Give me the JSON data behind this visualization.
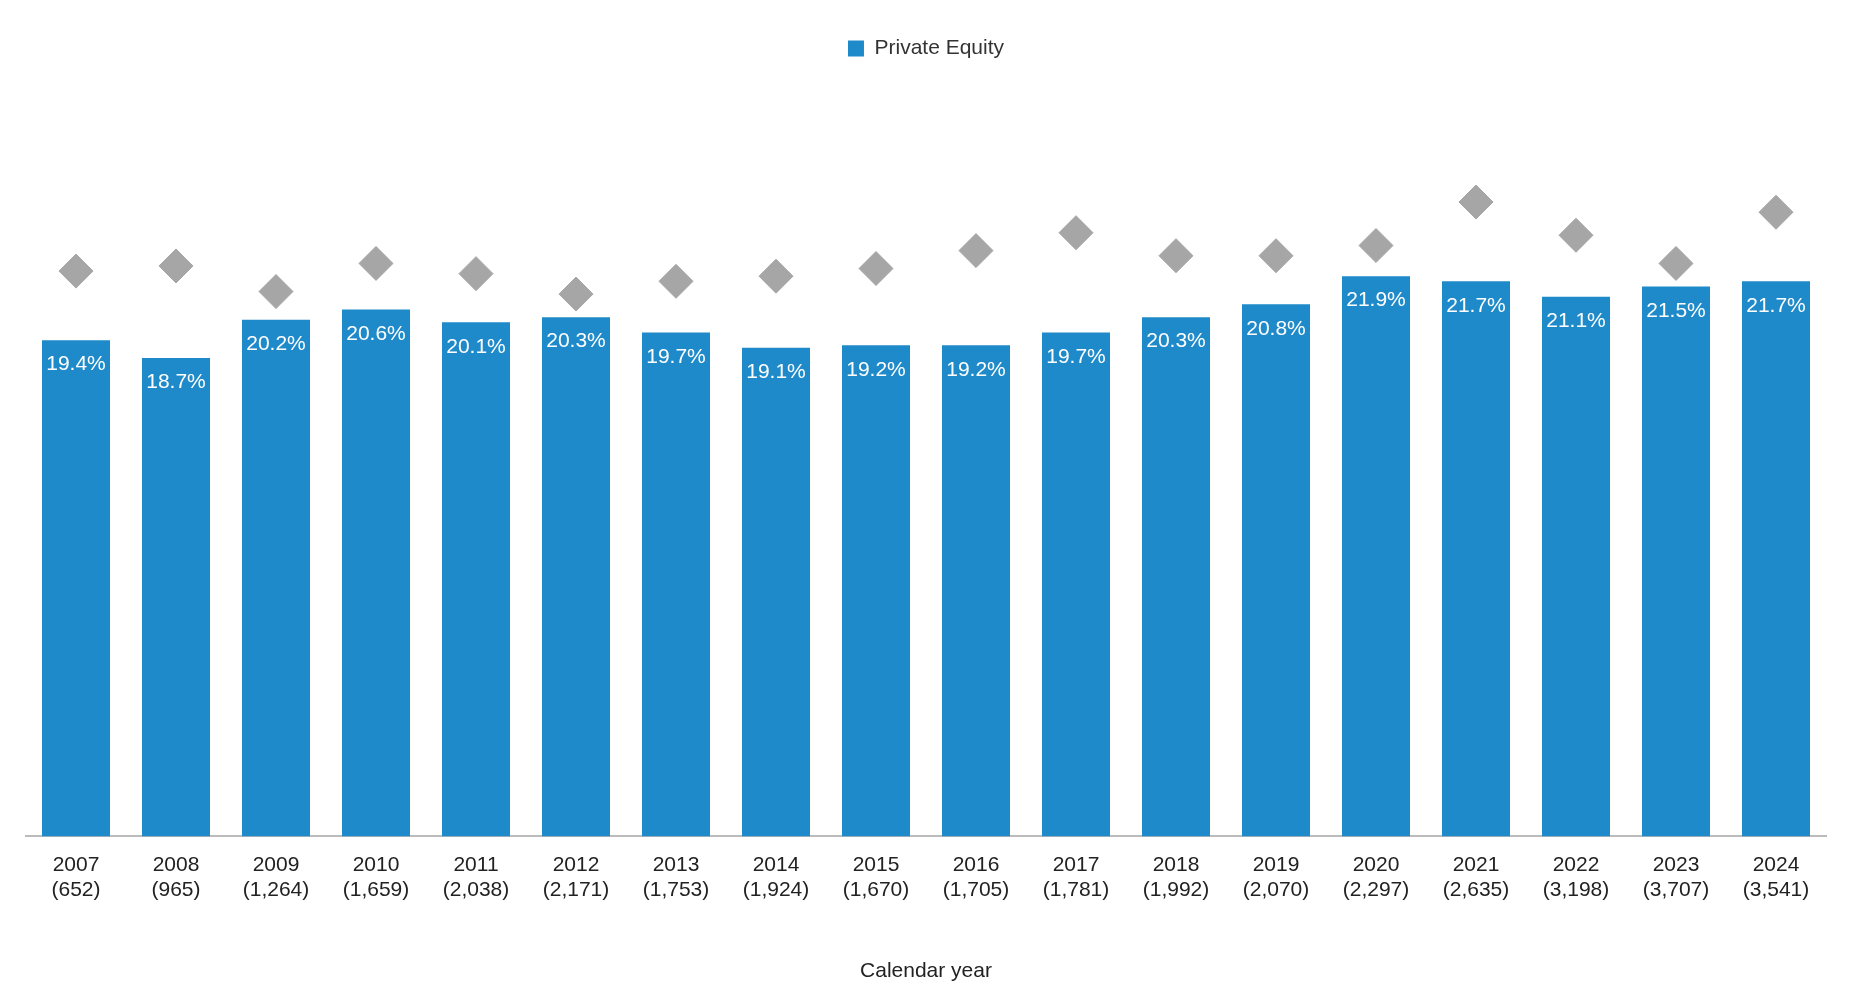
{
  "chart_data": {
    "type": "bar",
    "xlabel": "Calendar year",
    "categories": [
      "2007\n(652)",
      "2008\n(965)",
      "2009\n(1,264)",
      "2010\n(1,659)",
      "2011\n(2,038)",
      "2012\n(2,171)",
      "2013\n(1,753)",
      "2014\n(1,924)",
      "2015\n(1,670)",
      "2016\n(1,705)",
      "2017\n(1,781)",
      "2018\n(1,992)",
      "2019\n(2,070)",
      "2020\n(2,297)",
      "2021\n(2,635)",
      "2022\n(3,198)",
      "2023\n(3,707)",
      "2024\n(3,541)"
    ],
    "series": [
      {
        "name": "Private Equity",
        "color": "#1f8ac9",
        "values": [
          19.4,
          18.7,
          20.2,
          20.6,
          20.1,
          20.3,
          19.7,
          19.1,
          19.2,
          19.2,
          19.7,
          20.3,
          20.8,
          21.9,
          21.7,
          21.1,
          21.5,
          21.7
        ],
        "value_labels": [
          "19.4%",
          "18.7%",
          "20.2%",
          "20.6%",
          "20.1%",
          "20.3%",
          "19.7%",
          "19.1%",
          "19.2%",
          "19.2%",
          "19.7%",
          "20.3%",
          "20.8%",
          "21.9%",
          "21.7%",
          "21.1%",
          "21.5%",
          "21.7%"
        ]
      },
      {
        "type": "scatter",
        "marker": "diamond",
        "color": "#a6a6a6",
        "values": [
          22.1,
          22.3,
          21.3,
          22.4,
          22.0,
          21.2,
          21.7,
          21.9,
          22.2,
          22.9,
          23.6,
          22.7,
          22.7,
          23.1,
          24.8,
          23.5,
          22.4,
          24.4
        ]
      }
    ],
    "grid": false,
    "legend": "top",
    "tick_labels": "x"
  }
}
